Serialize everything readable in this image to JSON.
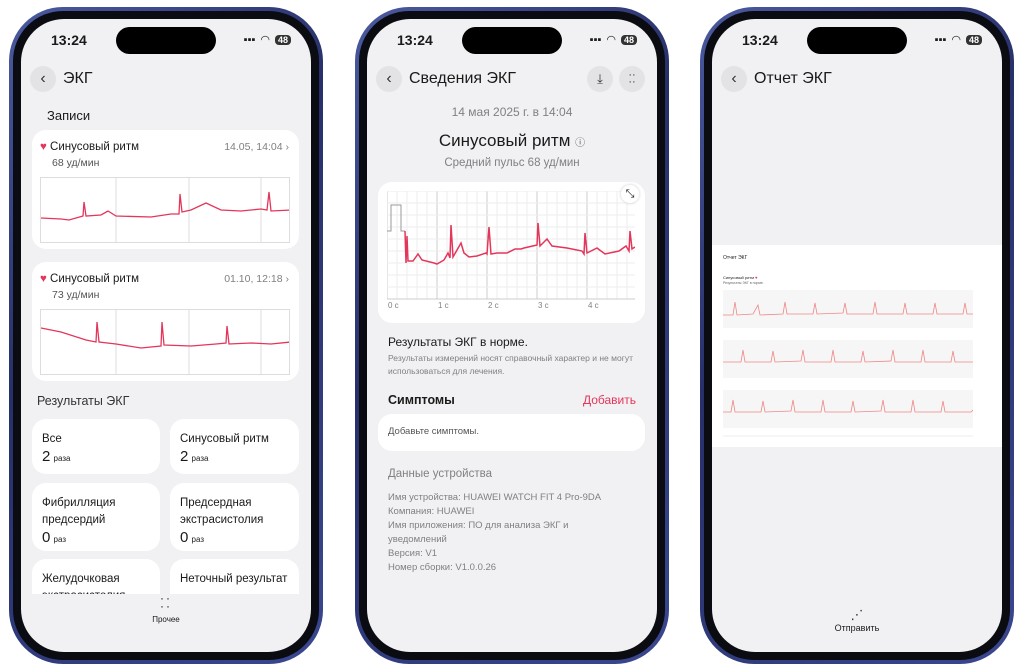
{
  "status": {
    "time": "13:24",
    "battery": "48"
  },
  "colors": {
    "accent": "#e3365a",
    "background": "#f1f1f3",
    "frame": "#2f3a7a"
  },
  "screen1": {
    "title": "ЭКГ",
    "records_header": "Записи",
    "records": [
      {
        "label": "Синусовый ритм",
        "bpm": "68 уд/мин",
        "datetime": "14.05, 14:04"
      },
      {
        "label": "Синусовый ритм",
        "bpm": "73 уд/мин",
        "datetime": "01.10, 12:18"
      }
    ],
    "results_header": "Результаты ЭКГ",
    "tiles": [
      {
        "label": "Все",
        "count": "2",
        "unit": "раза"
      },
      {
        "label": "Синусовый ритм",
        "count": "2",
        "unit": "раза"
      },
      {
        "label": "Фибрилляция предсердий",
        "count": "0",
        "unit": "раз"
      },
      {
        "label": "Предсердная экстрасистолия",
        "count": "0",
        "unit": "раз"
      },
      {
        "label": "Желудочковая экстрасистолия"
      },
      {
        "label": "Неточный результат"
      }
    ],
    "more_label": "Прочее"
  },
  "screen2": {
    "title": "Сведения ЭКГ",
    "date": "14 мая 2025 г. в 14:04",
    "rhythm": "Синусовый ритм",
    "avg_pulse": "Средний пульс 68 уд/мин",
    "axis_ticks": [
      "0 с",
      "1 с",
      "2 с",
      "3 с",
      "4 с"
    ],
    "result_title": "Результаты ЭКГ в норме.",
    "disclaimer": "Результаты измерений носят справочный характер и не могут использоваться для лечения.",
    "symptoms_header": "Симптомы",
    "add_label": "Добавить",
    "symptoms_placeholder": "Добавьте симптомы.",
    "device_header": "Данные устройства",
    "device_lines": [
      "Имя устройства: HUAWEI WATCH FIT 4 Pro-9DA",
      "Компания: HUAWEI",
      "Имя приложения: ПО для анализа ЭКГ и уведомлений",
      "Версия: V1",
      "Номер сборки: V1.0.0.26"
    ]
  },
  "screen3": {
    "title": "Отчет ЭКГ",
    "report_title": "Отчет ЭКГ",
    "report_rhythm": "Синусовый ритм",
    "report_result": "Результаты ЭКГ в норме.",
    "send_label": "Отправить"
  }
}
